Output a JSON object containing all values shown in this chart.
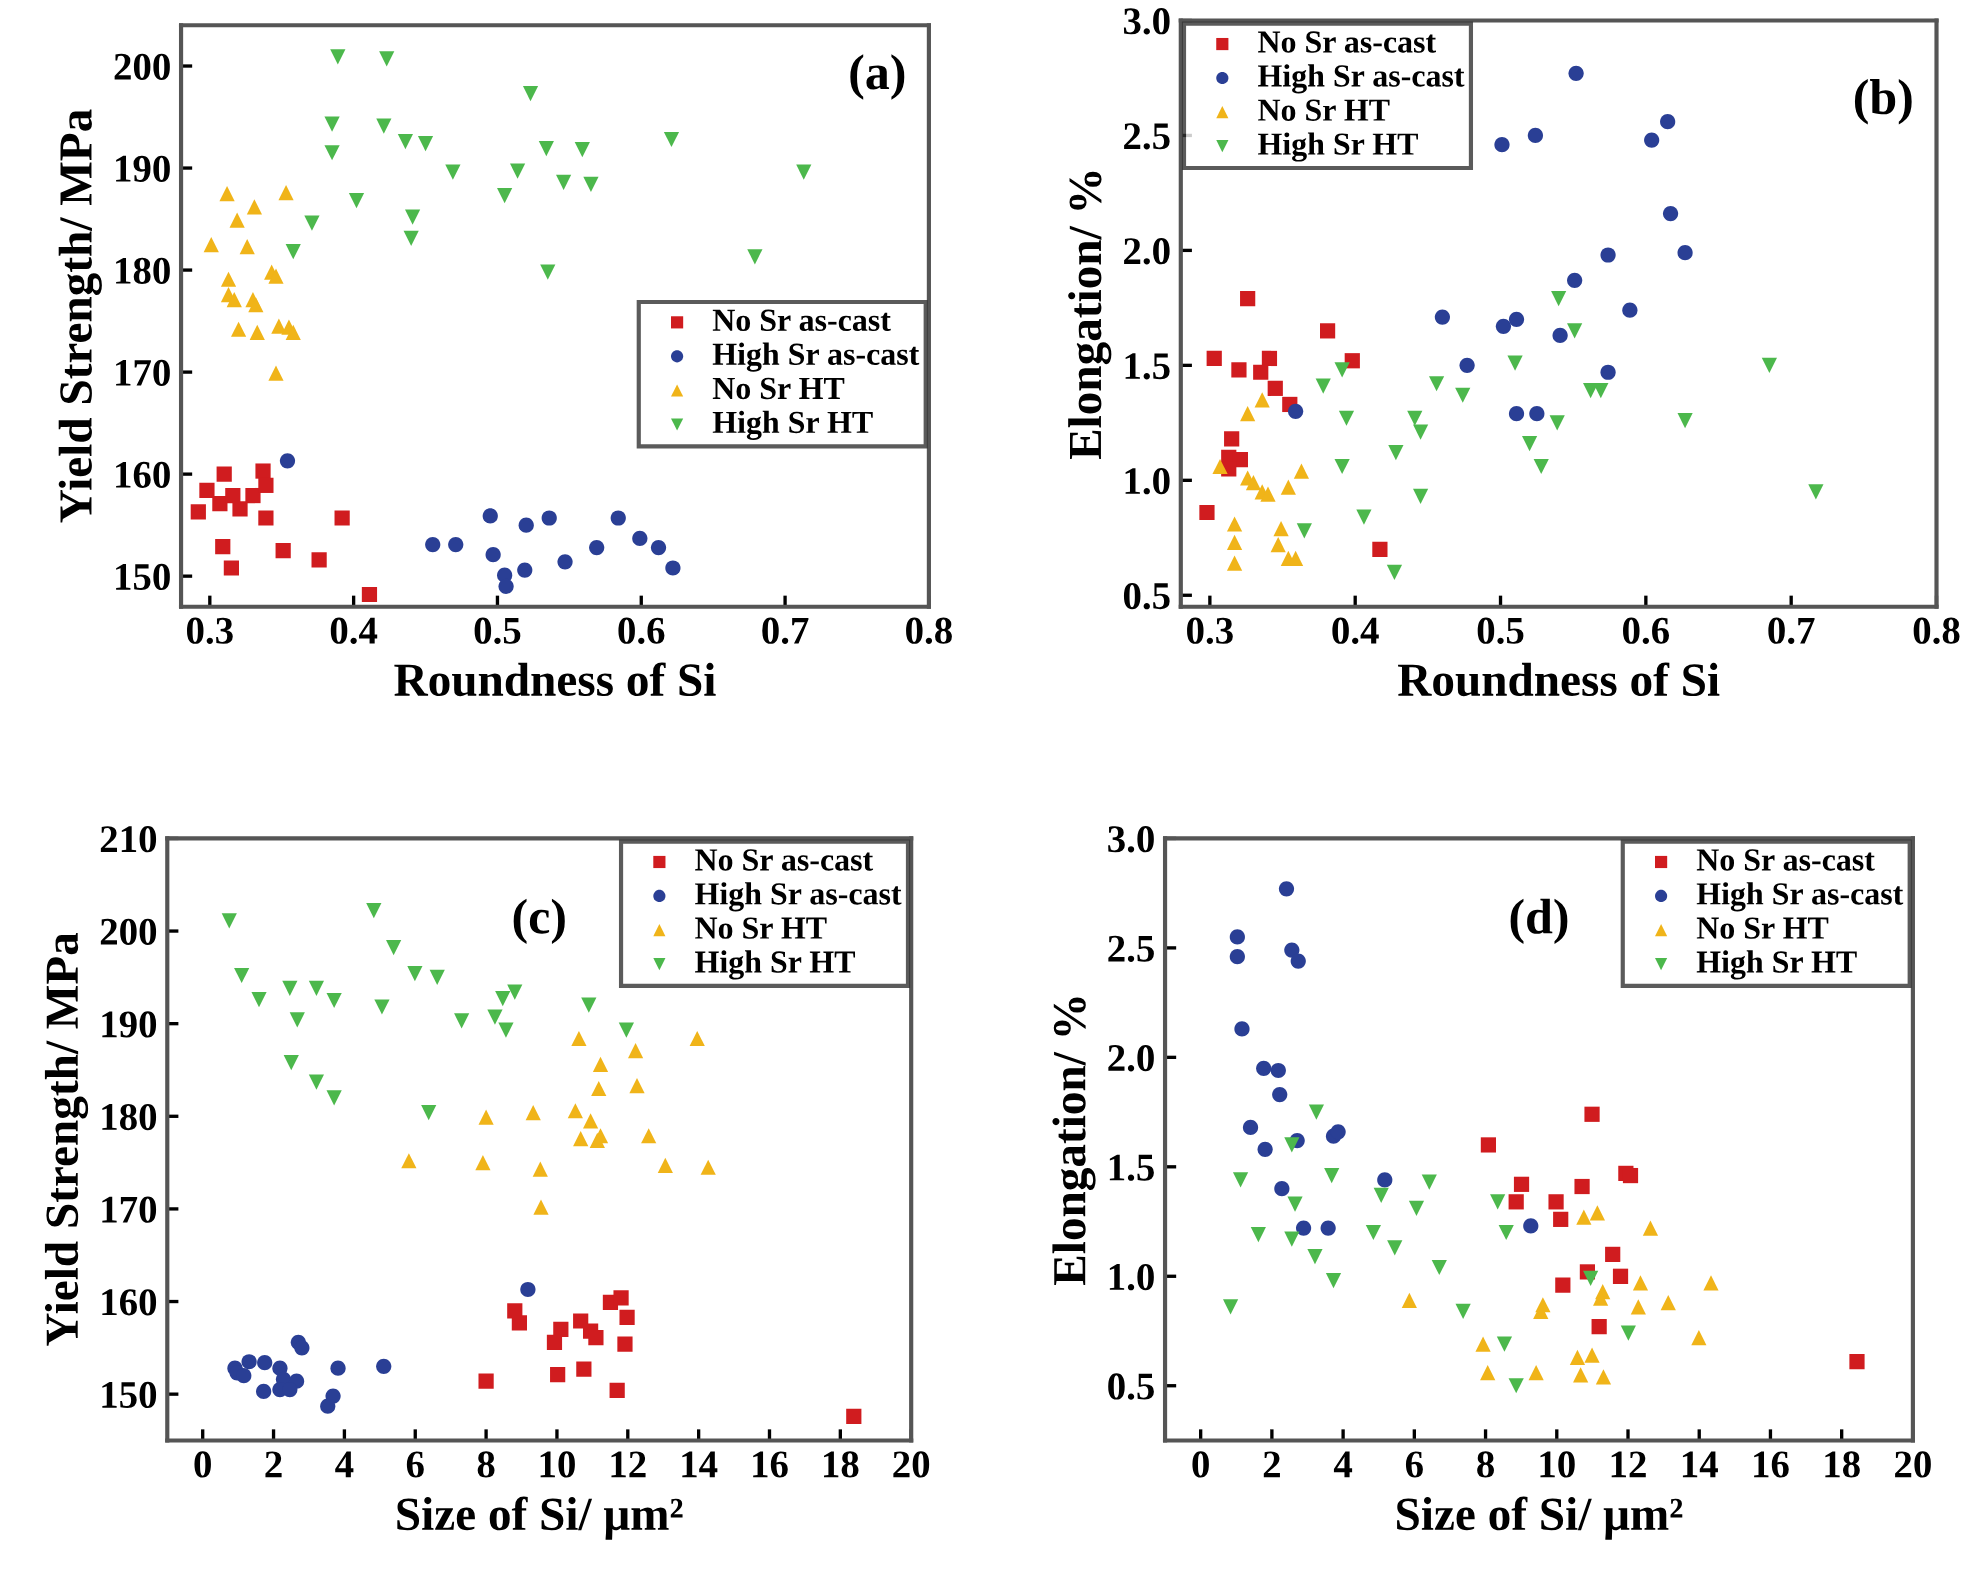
{
  "chart_data": [
    {
      "type": "scatter",
      "xlabel": "Roundness of Si",
      "ylabel": "Yield Strength/ MPa",
      "annotations": [
        "(a)"
      ],
      "xlim": [
        0.28,
        0.8
      ],
      "ylim": [
        147,
        204
      ],
      "xticks": [
        0.3,
        0.4,
        0.5,
        0.6,
        0.7,
        0.8
      ],
      "yticks": [
        150,
        160,
        170,
        180,
        190,
        200
      ],
      "legend": "right",
      "grid": false,
      "series": [
        {
          "name": "No Sr as-cast",
          "color": "#d01c1f",
          "marker": "square",
          "x": [
            0.31,
            0.337,
            0.298,
            0.307,
            0.316,
            0.33,
            0.339,
            0.321,
            0.292,
            0.339,
            0.392,
            0.309,
            0.351,
            0.376,
            0.315,
            0.411
          ],
          "values": [
            160.0,
            160.3,
            158.4,
            157.1,
            157.9,
            157.9,
            158.9,
            156.6,
            156.3,
            155.7,
            155.7,
            152.9,
            152.5,
            151.6,
            150.8,
            148.2
          ]
        },
        {
          "name": "High Sr as-cast",
          "color": "#2a3f95",
          "marker": "circle",
          "x": [
            0.354,
            0.495,
            0.52,
            0.536,
            0.584,
            0.455,
            0.471,
            0.497,
            0.519,
            0.547,
            0.569,
            0.599,
            0.612,
            0.622,
            0.505,
            0.506
          ],
          "values": [
            161.3,
            155.9,
            155.0,
            155.7,
            155.7,
            153.1,
            153.1,
            152.1,
            150.6,
            151.4,
            152.8,
            153.7,
            152.8,
            150.8,
            150.1,
            149.0
          ]
        },
        {
          "name": "No Sr HT",
          "color": "#f0b419",
          "marker": "triangle",
          "x": [
            0.312,
            0.353,
            0.331,
            0.319,
            0.301,
            0.326,
            0.343,
            0.346,
            0.313,
            0.313,
            0.33,
            0.317,
            0.332,
            0.348,
            0.355,
            0.32,
            0.333,
            0.358,
            0.346
          ],
          "values": [
            187.5,
            187.6,
            186.2,
            184.9,
            182.5,
            182.3,
            179.8,
            179.4,
            179.1,
            177.6,
            177.1,
            177.1,
            176.6,
            174.5,
            174.4,
            174.2,
            173.9,
            173.9,
            169.9
          ]
        },
        {
          "name": "High Sr HT",
          "color": "#4cb84c",
          "marker": "triangle_down",
          "x": [
            0.389,
            0.423,
            0.523,
            0.385,
            0.421,
            0.436,
            0.45,
            0.385,
            0.534,
            0.559,
            0.621,
            0.469,
            0.514,
            0.546,
            0.565,
            0.713,
            0.505,
            0.402,
            0.441,
            0.371,
            0.44,
            0.358,
            0.679,
            0.535
          ],
          "values": [
            200.9,
            200.7,
            197.3,
            194.3,
            194.1,
            192.6,
            192.4,
            191.5,
            191.9,
            191.8,
            192.8,
            189.6,
            189.7,
            188.6,
            188.4,
            189.6,
            187.3,
            186.8,
            185.2,
            184.6,
            183.1,
            181.8,
            181.3,
            179.8
          ]
        }
      ]
    },
    {
      "type": "scatter",
      "xlabel": "Roundness of Si",
      "ylabel": "Elongation/ %",
      "annotations": [
        "(b)"
      ],
      "xlim": [
        0.28,
        0.8
      ],
      "ylim": [
        0.45,
        3.0
      ],
      "xticks": [
        0.3,
        0.4,
        0.5,
        0.6,
        0.7,
        0.8
      ],
      "yticks": [
        {
          "value": 0.5,
          "label": "0.5"
        },
        {
          "value": 1.0,
          "label": "1.0"
        },
        {
          "value": 1.5,
          "label": "1.5"
        },
        {
          "value": 2.0,
          "label": "2.0"
        },
        {
          "value": 2.5,
          "label": "2.5"
        },
        {
          "value": 3.0,
          "label": "3.0"
        }
      ],
      "legend": "top left",
      "grid": false,
      "series": [
        {
          "name": "No Sr as-cast",
          "color": "#d01c1f",
          "marker": "square",
          "x": [
            0.326,
            0.381,
            0.303,
            0.32,
            0.341,
            0.335,
            0.398,
            0.345,
            0.355,
            0.315,
            0.313,
            0.321,
            0.313,
            0.298,
            0.417
          ],
          "values": [
            1.79,
            1.65,
            1.53,
            1.48,
            1.53,
            1.47,
            1.52,
            1.4,
            1.33,
            1.18,
            1.1,
            1.09,
            1.05,
            0.86,
            0.7
          ]
        },
        {
          "name": "High Sr as-cast",
          "color": "#2a3f95",
          "marker": "circle",
          "x": [
            0.552,
            0.501,
            0.524,
            0.604,
            0.615,
            0.617,
            0.574,
            0.627,
            0.551,
            0.46,
            0.502,
            0.511,
            0.541,
            0.589,
            0.477,
            0.574,
            0.359,
            0.511,
            0.525
          ],
          "values": [
            2.77,
            2.46,
            2.5,
            2.48,
            2.56,
            2.16,
            1.98,
            1.99,
            1.87,
            1.71,
            1.67,
            1.7,
            1.63,
            1.74,
            1.5,
            1.47,
            1.3,
            1.29,
            1.29
          ]
        },
        {
          "name": "No Sr HT",
          "color": "#f0b419",
          "marker": "triangle",
          "x": [
            0.336,
            0.326,
            0.307,
            0.326,
            0.336,
            0.34,
            0.354,
            0.363,
            0.317,
            0.317,
            0.317,
            0.349,
            0.347,
            0.354,
            0.359,
            0.33
          ],
          "values": [
            1.35,
            1.29,
            1.06,
            1.01,
            0.95,
            0.94,
            0.97,
            1.04,
            0.81,
            0.73,
            0.64,
            0.79,
            0.72,
            0.66,
            0.66,
            0.99
          ]
        },
        {
          "name": "High Sr HT",
          "color": "#4cb84c",
          "marker": "triangle_down",
          "x": [
            0.54,
            0.551,
            0.391,
            0.378,
            0.51,
            0.456,
            0.474,
            0.562,
            0.569,
            0.685,
            0.394,
            0.441,
            0.445,
            0.539,
            0.627,
            0.52,
            0.428,
            0.391,
            0.528,
            0.445,
            0.717,
            0.406,
            0.365,
            0.427
          ],
          "values": [
            1.79,
            1.65,
            1.48,
            1.41,
            1.51,
            1.42,
            1.37,
            1.39,
            1.39,
            1.5,
            1.27,
            1.27,
            1.21,
            1.25,
            1.26,
            1.16,
            1.12,
            1.06,
            1.06,
            0.93,
            0.95,
            0.84,
            0.78,
            0.6
          ]
        }
      ]
    },
    {
      "type": "scatter",
      "xlabel": "Size of Si/ μm²",
      "ylabel": "Yield Strength/ MPa",
      "annotations": [
        "(c)"
      ],
      "xlim": [
        -1,
        20
      ],
      "ylim": [
        145,
        210
      ],
      "xticks": [
        0,
        2,
        4,
        6,
        8,
        10,
        12,
        14,
        16,
        18,
        20
      ],
      "yticks": [
        150,
        160,
        170,
        180,
        190,
        200,
        210
      ],
      "legend": "top right",
      "grid": false,
      "series": [
        {
          "name": "No Sr as-cast",
          "color": "#d01c1f",
          "marker": "square",
          "x": [
            8.81,
            8.94,
            11.51,
            11.81,
            11.98,
            10.67,
            10.11,
            10.95,
            11.1,
            9.93,
            11.92,
            8.0,
            10.02,
            10.76,
            11.7,
            18.38
          ],
          "values": [
            159.0,
            157.7,
            159.9,
            160.4,
            158.3,
            157.9,
            157.0,
            156.8,
            156.1,
            155.6,
            155.4,
            151.4,
            152.1,
            152.7,
            150.4,
            147.6
          ]
        },
        {
          "name": "High Sr as-cast",
          "color": "#2a3f95",
          "marker": "circle",
          "x": [
            9.18,
            1.31,
            1.75,
            0.91,
            0.97,
            1.16,
            1.72,
            2.18,
            2.28,
            2.18,
            2.65,
            2.46,
            2.7,
            2.8,
            3.82,
            3.68,
            3.53,
            5.11
          ],
          "values": [
            161.3,
            153.5,
            153.4,
            152.8,
            152.3,
            152.0,
            150.3,
            152.8,
            151.6,
            150.5,
            151.4,
            150.5,
            155.6,
            155.0,
            152.8,
            149.8,
            148.7,
            153.0
          ]
        },
        {
          "name": "No Sr HT",
          "color": "#f0b419",
          "marker": "triangle",
          "x": [
            10.62,
            13.96,
            12.22,
            11.23,
            11.18,
            12.26,
            8.0,
            9.33,
            10.52,
            10.95,
            10.67,
            11.14,
            11.23,
            12.59,
            5.82,
            7.91,
            9.53,
            13.06,
            14.27,
            9.55
          ],
          "values": [
            188.4,
            188.4,
            187.1,
            185.6,
            183.0,
            183.3,
            179.9,
            180.4,
            180.6,
            179.5,
            177.6,
            177.4,
            177.9,
            177.9,
            175.2,
            175.0,
            174.3,
            174.7,
            174.5,
            170.2
          ]
        },
        {
          "name": "High Sr HT",
          "color": "#4cb84c",
          "marker": "triangle_down",
          "x": [
            0.75,
            4.83,
            5.39,
            5.99,
            6.62,
            1.1,
            2.46,
            3.21,
            1.59,
            3.71,
            5.06,
            2.67,
            7.31,
            8.25,
            8.47,
            8.81,
            8.56,
            10.9,
            11.96,
            2.5,
            3.21,
            3.71,
            6.38
          ],
          "values": [
            201.1,
            202.2,
            198.2,
            195.4,
            195.0,
            195.2,
            193.8,
            193.8,
            192.6,
            192.5,
            191.8,
            190.4,
            190.3,
            190.7,
            192.7,
            193.4,
            189.3,
            192.0,
            189.3,
            185.8,
            183.7,
            182.0,
            180.4
          ]
        }
      ]
    },
    {
      "type": "scatter",
      "xlabel": "Size of Si/ μm²",
      "ylabel": "Elongation/ %",
      "annotations": [
        "(d)"
      ],
      "xlim": [
        -1,
        20
      ],
      "ylim": [
        0.25,
        3.0
      ],
      "xticks": [
        0,
        2,
        4,
        6,
        8,
        10,
        12,
        14,
        16,
        18,
        20
      ],
      "yticks": [
        {
          "value": 0.5,
          "label": "0.5"
        },
        {
          "value": 1.0,
          "label": "1.0"
        },
        {
          "value": 1.5,
          "label": "1.5"
        },
        {
          "value": 2.0,
          "label": "2.0"
        },
        {
          "value": 2.5,
          "label": "2.5"
        },
        {
          "value": 3.0,
          "label": "3.0"
        }
      ],
      "legend": "top right",
      "grid": false,
      "series": [
        {
          "name": "No Sr as-cast",
          "color": "#d01c1f",
          "marker": "square",
          "x": [
            10.99,
            8.08,
            9.01,
            8.86,
            9.98,
            10.11,
            10.71,
            11.94,
            12.07,
            11.57,
            11.79,
            10.86,
            10.17,
            11.19,
            18.43
          ],
          "values": [
            1.74,
            1.6,
            1.42,
            1.34,
            1.34,
            1.26,
            1.41,
            1.47,
            1.46,
            1.1,
            1.0,
            1.02,
            0.96,
            0.77,
            0.61
          ]
        },
        {
          "name": "High Sr as-cast",
          "color": "#2a3f95",
          "marker": "circle",
          "x": [
            2.41,
            1.03,
            1.03,
            2.56,
            2.74,
            1.16,
            1.77,
            2.18,
            2.22,
            1.4,
            2.71,
            3.73,
            3.86,
            1.81,
            5.17,
            2.28,
            2.89,
            3.58,
            9.27
          ],
          "values": [
            2.77,
            2.55,
            2.46,
            2.49,
            2.44,
            2.13,
            1.95,
            1.94,
            1.83,
            1.68,
            1.62,
            1.64,
            1.66,
            1.58,
            1.44,
            1.4,
            1.22,
            1.22,
            1.23
          ]
        },
        {
          "name": "No Sr HT",
          "color": "#f0b419",
          "marker": "triangle",
          "x": [
            11.14,
            10.76,
            12.63,
            12.35,
            14.33,
            11.29,
            11.23,
            12.29,
            13.13,
            9.61,
            9.55,
            5.86,
            7.93,
            13.99,
            10.58,
            10.99,
            8.06,
            9.42,
            10.67,
            11.31
          ],
          "values": [
            1.29,
            1.27,
            1.22,
            0.97,
            0.97,
            0.93,
            0.9,
            0.86,
            0.88,
            0.87,
            0.84,
            0.89,
            0.69,
            0.72,
            0.63,
            0.64,
            0.56,
            0.56,
            0.55,
            0.54
          ]
        },
        {
          "name": "High Sr HT",
          "color": "#4cb84c",
          "marker": "triangle_down",
          "x": [
            3.25,
            2.56,
            1.12,
            3.68,
            5.07,
            6.42,
            6.06,
            8.34,
            2.65,
            1.62,
            2.56,
            4.85,
            5.45,
            8.58,
            3.21,
            3.73,
            6.7,
            7.37,
            0.84,
            10.95,
            8.53,
            12.01,
            8.86
          ],
          "values": [
            1.75,
            1.6,
            1.44,
            1.46,
            1.37,
            1.43,
            1.31,
            1.34,
            1.33,
            1.19,
            1.17,
            1.2,
            1.13,
            1.2,
            1.09,
            0.98,
            1.04,
            0.84,
            0.86,
            0.99,
            0.69,
            0.74,
            0.5
          ]
        }
      ]
    }
  ]
}
